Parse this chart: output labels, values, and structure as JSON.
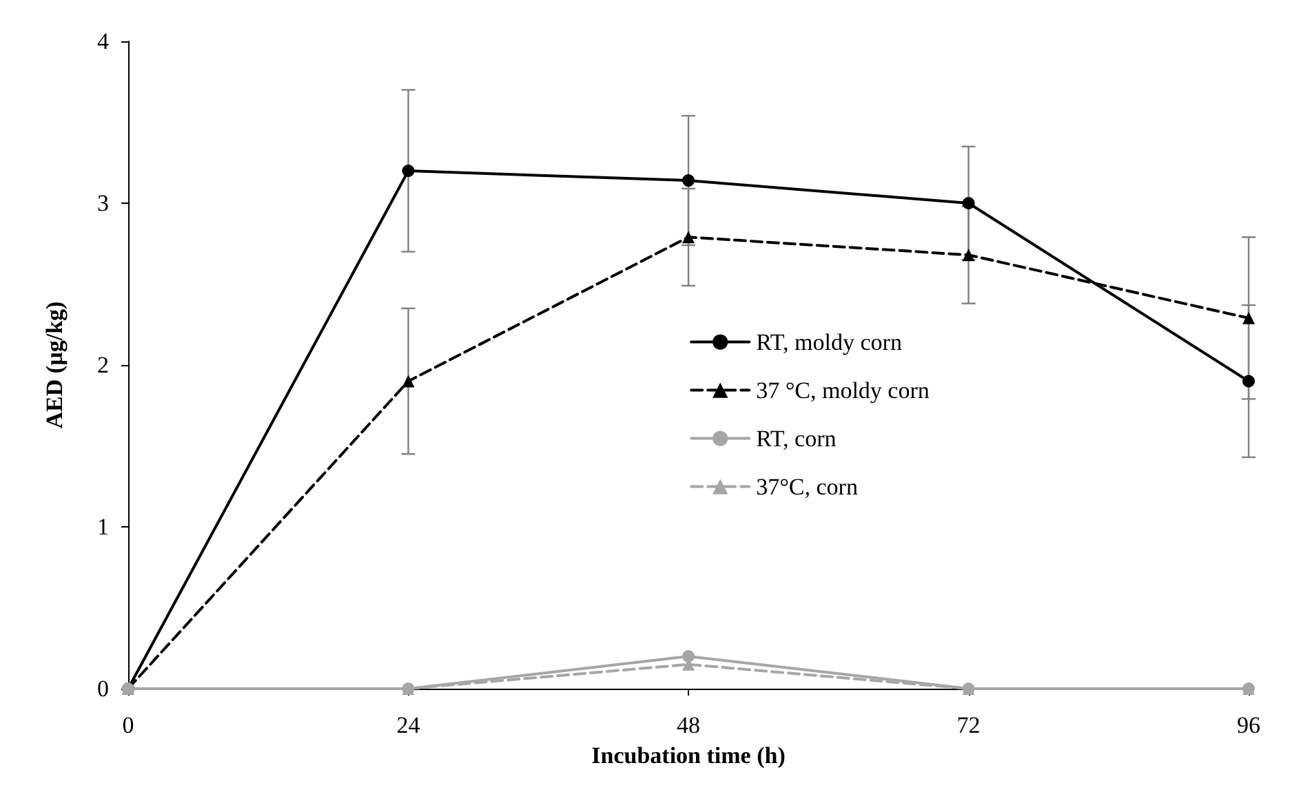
{
  "chart_data": {
    "type": "line",
    "xlabel": "Incubation time (h)",
    "ylabel": "AED (µg/kg)",
    "x": [
      0,
      24,
      48,
      72,
      96
    ],
    "xlim": [
      0,
      96
    ],
    "xticks": [
      0,
      24,
      48,
      72,
      96
    ],
    "ylim": [
      0,
      4
    ],
    "yticks": [
      0,
      1,
      2,
      3,
      4
    ],
    "grid": false,
    "legend": "right",
    "series": [
      {
        "name": "RT, moldy corn",
        "color": "#000000",
        "marker": "circle",
        "line_style": "solid",
        "values": [
          0,
          3.2,
          3.14,
          3.0,
          1.9
        ],
        "errors": [
          null,
          0.5,
          0.4,
          0.35,
          0.47
        ]
      },
      {
        "name": "37 °C, moldy corn",
        "color": "#000000",
        "marker": "triangle",
        "line_style": "dashed",
        "values": [
          0,
          1.9,
          2.79,
          2.68,
          2.29
        ],
        "errors": [
          null,
          0.45,
          0.3,
          0.3,
          0.5
        ]
      },
      {
        "name": "RT, corn",
        "color": "#a6a6a6",
        "marker": "circle",
        "line_style": "solid",
        "values": [
          0,
          0,
          0.2,
          0,
          0
        ]
      },
      {
        "name": "37°C, corn",
        "color": "#a6a6a6",
        "marker": "triangle",
        "line_style": "dashed",
        "values": [
          0,
          0,
          0.15,
          0,
          0
        ]
      }
    ]
  }
}
